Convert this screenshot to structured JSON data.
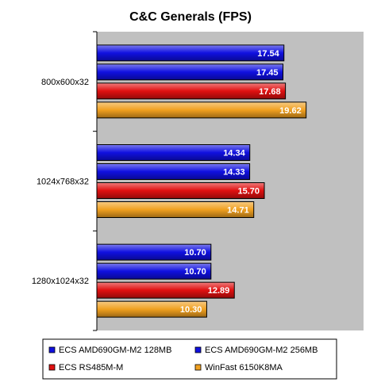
{
  "chart_data": {
    "type": "bar",
    "orientation": "horizontal",
    "title": "C&C Generals (FPS)",
    "categories": [
      "800x600x32",
      "1024x768x32",
      "1280x1024x32"
    ],
    "xlim": [
      0,
      25
    ],
    "grid": false,
    "legend_position": "bottom",
    "series": [
      {
        "name": "ECS AMD690GM-M2 128MB",
        "color": "#1010e0",
        "values": [
          17.54,
          14.34,
          10.7
        ],
        "labels": [
          "17.54",
          "14.34",
          "10.70"
        ]
      },
      {
        "name": "ECS AMD690GM-M2 256MB",
        "color": "#1010e0",
        "values": [
          17.45,
          14.33,
          10.7
        ],
        "labels": [
          "17.45",
          "14.33",
          "10.70"
        ]
      },
      {
        "name": "ECS RS485M-M",
        "color": "#e01010",
        "values": [
          17.68,
          15.7,
          12.89
        ],
        "labels": [
          "17.68",
          "15.70",
          "12.89"
        ]
      },
      {
        "name": "WinFast 6150K8MA",
        "color": "#f0a020",
        "values": [
          19.62,
          14.71,
          10.3
        ],
        "labels": [
          "19.62",
          "14.71",
          "10.30"
        ]
      }
    ]
  }
}
